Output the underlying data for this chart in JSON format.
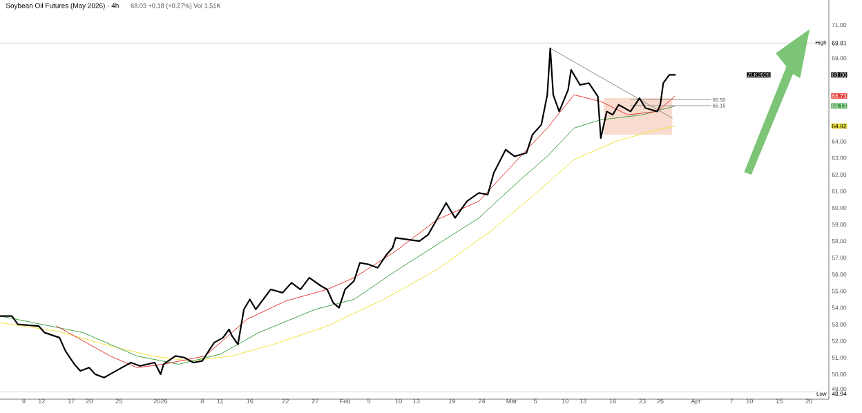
{
  "chart_data": {
    "type": "line",
    "title": "Soybean Oil Futures (May 2026) · 4h",
    "subtitle": "68.03 +0.18 (+0.27%) Vol 1.51K",
    "xlim": [
      "2025-12-05",
      "2026-04-23T08:00"
    ],
    "ylim": [
      48.5,
      72.5
    ],
    "xticks": [
      {
        "value": "2025-12-09",
        "label": "9"
      },
      {
        "value": "2025-12-12",
        "label": "12"
      },
      {
        "value": "2025-12-17",
        "label": "17"
      },
      {
        "value": "2025-12-20",
        "label": "20"
      },
      {
        "value": "2025-12-25",
        "label": "25"
      },
      {
        "value": "2026-01-01",
        "label": "2026"
      },
      {
        "value": "2026-01-08",
        "label": "8"
      },
      {
        "value": "2026-01-11",
        "label": "11"
      },
      {
        "value": "2026-01-16",
        "label": "16"
      },
      {
        "value": "2026-01-22",
        "label": "22"
      },
      {
        "value": "2026-01-27",
        "label": "27"
      },
      {
        "value": "2026-02-01",
        "label": "Feb"
      },
      {
        "value": "2026-02-05",
        "label": "5"
      },
      {
        "value": "2026-02-10",
        "label": "10"
      },
      {
        "value": "2026-02-13",
        "label": "13"
      },
      {
        "value": "2026-02-19",
        "label": "19"
      },
      {
        "value": "2026-02-24",
        "label": "24"
      },
      {
        "value": "2026-03-01",
        "label": "Mar"
      },
      {
        "value": "2026-03-05",
        "label": "5"
      },
      {
        "value": "2026-03-10",
        "label": "10"
      },
      {
        "value": "2026-03-13",
        "label": "13"
      },
      {
        "value": "2026-03-18",
        "label": "18"
      },
      {
        "value": "2026-03-23",
        "label": "23"
      },
      {
        "value": "2026-03-26",
        "label": "26"
      },
      {
        "value": "2026-04-01",
        "label": "Apr"
      },
      {
        "value": "2026-04-07",
        "label": "7"
      },
      {
        "value": "2026-04-10",
        "label": "10"
      },
      {
        "value": "2026-04-15",
        "label": "15"
      },
      {
        "value": "2026-04-20",
        "label": "20"
      }
    ],
    "yticks": [
      {
        "value": 71,
        "label": "71.00"
      },
      {
        "value": 69.91,
        "label": "69.91"
      },
      {
        "value": 69,
        "label": "69.00"
      },
      {
        "value": 68,
        "label": "68.00"
      },
      {
        "value": 66.73,
        "label": "66.73"
      },
      {
        "value": 66.13,
        "label": "66.13"
      },
      {
        "value": 64.92,
        "label": "64.92"
      },
      {
        "value": 64,
        "label": "64.00"
      },
      {
        "value": 63,
        "label": "63.00"
      },
      {
        "value": 62,
        "label": "62.00"
      },
      {
        "value": 61,
        "label": "61.00"
      },
      {
        "value": 60,
        "label": "60.00"
      },
      {
        "value": 59,
        "label": "59.00"
      },
      {
        "value": 58,
        "label": "58.00"
      },
      {
        "value": 57,
        "label": "57.00"
      },
      {
        "value": 56,
        "label": "56.00"
      },
      {
        "value": 55,
        "label": "55.00"
      },
      {
        "value": 54,
        "label": "54.00"
      },
      {
        "value": 53,
        "label": "53.00"
      },
      {
        "value": 52,
        "label": "52.00"
      },
      {
        "value": 51,
        "label": "51.00"
      },
      {
        "value": 50,
        "label": "50.00"
      },
      {
        "value": 49,
        "label": "49.00"
      },
      {
        "value": 48.94,
        "label": "48.94"
      }
    ],
    "ref_lines": [
      {
        "axis": "y",
        "value": 69.91,
        "label": "High",
        "color": "#c8c8c8"
      },
      {
        "axis": "y",
        "value": 48.94,
        "label": "Low",
        "color": "#c8c8c8"
      }
    ],
    "series": [
      {
        "name": "ZLK2026",
        "color": "#000000",
        "x": [
          "2025-12-05",
          "2025-12-07",
          "2025-12-08",
          "2025-12-11T12:00",
          "2025-12-12T12:00",
          "2025-12-15",
          "2025-12-16",
          "2025-12-17T12:00",
          "2025-12-18T12:00",
          "2025-12-20",
          "2025-12-21",
          "2025-12-22T12:00",
          "2025-12-23T12:00",
          "2025-12-25",
          "2025-12-27",
          "2025-12-28T12:00",
          "2025-12-31",
          "2026-01-01",
          "2026-01-01T12:00",
          "2026-01-03T12:00",
          "2026-01-05",
          "2026-01-06T12:00",
          "2026-01-08",
          "2026-01-10",
          "2026-01-11T12:00",
          "2026-01-12T12:00",
          "2026-01-13",
          "2026-01-14",
          "2026-01-15",
          "2026-01-16",
          "2026-01-17",
          "2026-01-19T12:00",
          "2026-01-21T12:00",
          "2026-01-23",
          "2026-01-24T12:00",
          "2026-01-26",
          "2026-01-28",
          "2026-01-29",
          "2026-01-30",
          "2026-01-31",
          "2026-02-01",
          "2026-02-02T12:00",
          "2026-02-03T12:00",
          "2026-02-05",
          "2026-02-06T12:00",
          "2026-02-08",
          "2026-02-09",
          "2026-02-09T12:00",
          "2026-02-13T12:00",
          "2026-02-15",
          "2026-02-18",
          "2026-02-19T12:00",
          "2026-02-21T12:00",
          "2026-02-23T12:00",
          "2026-02-25",
          "2026-02-26",
          "2026-02-28",
          "2026-03-01T12:00",
          "2026-03-03T12:00",
          "2026-03-04T12:00",
          "2026-03-06",
          "2026-03-07",
          "2026-03-07T12:00",
          "2026-03-08",
          "2026-03-09",
          "2026-03-10T12:00",
          "2026-03-11",
          "2026-03-12T12:00",
          "2026-03-14",
          "2026-03-15T12:00",
          "2026-03-16",
          "2026-03-17",
          "2026-03-18",
          "2026-03-19",
          "2026-03-21",
          "2026-03-22T12:00",
          "2026-03-23T12:00",
          "2026-03-25T12:00",
          "2026-03-26",
          "2026-03-26T12:00",
          "2026-03-27T12:00",
          "2026-03-28T12:00"
        ],
        "values": [
          53.5,
          53.5,
          53.0,
          52.9,
          52.5,
          52.2,
          51.4,
          50.6,
          50.2,
          50.4,
          50.0,
          49.8,
          50.0,
          50.3,
          50.7,
          50.5,
          50.7,
          50.0,
          50.6,
          51.1,
          51.0,
          50.7,
          50.8,
          51.9,
          52.2,
          52.7,
          52.3,
          51.8,
          53.9,
          54.5,
          53.9,
          55.1,
          54.9,
          55.5,
          55.1,
          55.8,
          55.3,
          55.1,
          54.3,
          54.0,
          55.1,
          55.6,
          56.7,
          56.6,
          56.4,
          57.2,
          57.6,
          58.2,
          58.0,
          58.4,
          60.3,
          59.4,
          60.4,
          60.9,
          60.8,
          62.1,
          63.5,
          63.1,
          63.3,
          64.4,
          65.0,
          66.8,
          69.6,
          66.8,
          65.8,
          67.1,
          68.3,
          67.4,
          67.5,
          66.7,
          64.2,
          65.8,
          65.6,
          66.2,
          65.8,
          66.6,
          66.0,
          65.8,
          66.2,
          67.5,
          68.0,
          68.0
        ]
      },
      {
        "color": "#8a8a8a",
        "x": [
          "2026-03-07T12:00",
          "2026-03-28"
        ],
        "values": [
          69.6,
          65.4
        ]
      },
      {
        "color": "#9a9a9a",
        "x": [
          "2026-03-21",
          "2026-04-03T12:00"
        ],
        "values": [
          66.5,
          66.5
        ],
        "value_labels": [
          null,
          "66.50"
        ]
      },
      {
        "color": "#9a9a9a",
        "x": [
          "2026-03-21",
          "2026-04-03T12:00"
        ],
        "values": [
          66.15,
          66.15
        ],
        "value_labels": [
          null,
          "66.15"
        ]
      },
      {
        "color": "#e53935",
        "x": [
          "2025-12-14T12:00",
          "2025-12-23T12:00",
          "2025-12-28",
          "2026-01-01T12:00",
          "2026-01-08T12:00",
          "2026-01-12",
          "2026-01-15T12:00",
          "2026-01-22",
          "2026-01-29",
          "2026-02-02T12:00",
          "2026-02-09T12:00",
          "2026-02-16T12:00",
          "2026-02-23T12:00",
          "2026-03-02T12:00",
          "2026-03-07",
          "2026-03-11T12:00",
          "2026-03-16",
          "2026-03-20T12:00",
          "2026-03-25T12:00",
          "2026-03-28T12:00"
        ],
        "values": [
          52.9,
          51.1,
          50.4,
          50.6,
          51.1,
          52.2,
          53.3,
          54.4,
          55.1,
          55.8,
          57.4,
          59.3,
          60.4,
          63.1,
          64.8,
          66.8,
          66.4,
          65.6,
          65.8,
          66.73
        ]
      },
      {
        "color": "#43a047",
        "x": [
          "2025-12-05",
          "2025-12-19",
          "2025-12-28",
          "2026-01-04",
          "2026-01-11",
          "2026-01-17T12:00",
          "2026-01-27",
          "2026-02-02T12:00",
          "2026-02-09T12:00",
          "2026-02-16T12:00",
          "2026-02-23T12:00",
          "2026-03-02T12:00",
          "2026-03-07",
          "2026-03-11T12:00",
          "2026-03-16",
          "2026-03-23",
          "2026-03-28T12:00"
        ],
        "values": [
          53.5,
          52.5,
          51.1,
          50.6,
          51.2,
          52.5,
          53.9,
          54.5,
          56.2,
          57.8,
          59.4,
          61.7,
          63.1,
          64.8,
          65.3,
          65.6,
          66.13
        ]
      },
      {
        "color": "#f0e23c",
        "x": [
          "2025-12-05",
          "2025-12-14T12:00",
          "2025-12-23T12:00",
          "2025-12-30T12:00",
          "2026-01-06",
          "2026-01-13",
          "2026-01-20",
          "2026-01-29",
          "2026-02-07T12:00",
          "2026-02-16T12:00",
          "2026-02-25T12:00",
          "2026-03-04T12:00",
          "2026-03-11T12:00",
          "2026-03-18T12:00",
          "2026-03-25T12:00",
          "2026-03-28T12:00"
        ],
        "values": [
          53.1,
          52.6,
          51.7,
          51.1,
          50.8,
          51.1,
          51.8,
          52.9,
          54.5,
          56.3,
          58.6,
          60.7,
          62.9,
          64.0,
          64.7,
          64.92
        ]
      },
      {
        "color": "#f9dccf",
        "x": [
          "2026-03-16T12:00",
          "2026-03-28"
        ],
        "values": [
          null,
          null
        ],
        "lower": [
          64.4,
          64.4
        ],
        "upper": [
          66.6,
          66.6
        ]
      }
    ]
  }
}
